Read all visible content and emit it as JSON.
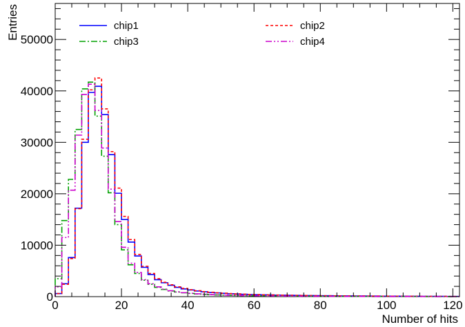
{
  "chart_data": {
    "type": "line",
    "title": "",
    "xlabel": "Number of hits",
    "ylabel": "Entries",
    "xlim": [
      0,
      122
    ],
    "ylim": [
      0,
      57000
    ],
    "x_ticks": [
      0,
      20,
      40,
      60,
      80,
      100,
      120
    ],
    "y_ticks": [
      0,
      10000,
      20000,
      30000,
      40000,
      50000
    ],
    "y_tick_labels": [
      "0",
      "10000",
      "20000",
      "30000",
      "40000",
      "50000"
    ],
    "x_tick_labels": [
      "0",
      "20",
      "40",
      "60",
      "80",
      "100",
      "120"
    ],
    "bin_width": 2,
    "x": [
      0,
      2,
      4,
      6,
      8,
      10,
      12,
      14,
      16,
      18,
      20,
      22,
      24,
      26,
      28,
      30,
      32,
      34,
      36,
      38,
      40,
      42,
      44,
      46,
      48,
      50,
      52,
      54,
      56,
      58,
      60,
      62,
      64,
      66,
      68,
      70,
      72,
      74,
      76,
      78,
      80,
      82,
      84,
      86,
      88,
      90,
      92,
      94,
      96,
      98,
      100,
      102,
      104,
      106,
      108,
      110,
      112,
      114,
      116,
      118,
      120
    ],
    "legend": {
      "placement": "top",
      "columns": 2
    },
    "series": [
      {
        "name": "chip1",
        "color": "#0000ff",
        "dash": "solid",
        "values": [
          600,
          2500,
          7600,
          17200,
          30000,
          39700,
          40900,
          35400,
          27600,
          20100,
          15000,
          10600,
          7900,
          5700,
          4300,
          3300,
          2700,
          2200,
          1800,
          1500,
          1300,
          1100,
          950,
          820,
          720,
          640,
          570,
          510,
          460,
          420,
          380,
          350,
          320,
          300,
          280,
          260,
          240,
          225,
          210,
          195,
          180,
          170,
          160,
          150,
          140,
          130,
          122,
          114,
          106,
          98,
          92,
          86,
          80,
          75,
          70,
          65,
          60,
          56,
          52,
          48,
          45
        ]
      },
      {
        "name": "chip2",
        "color": "#ff0000",
        "dash": "4,3",
        "values": [
          600,
          2400,
          7400,
          17100,
          30600,
          40200,
          42500,
          36500,
          28200,
          21100,
          15600,
          11100,
          8200,
          5900,
          4500,
          3500,
          2800,
          2300,
          1900,
          1600,
          1350,
          1150,
          980,
          850,
          740,
          660,
          590,
          530,
          480,
          430,
          390,
          360,
          330,
          310,
          290,
          270,
          250,
          230,
          215,
          200,
          185,
          175,
          165,
          155,
          145,
          135,
          126,
          118,
          110,
          102,
          95,
          89,
          83,
          77,
          72,
          67,
          62,
          58,
          54,
          50,
          47
        ]
      },
      {
        "name": "chip3",
        "color": "#00a000",
        "dash": "9,3,2,3",
        "values": [
          3500,
          14800,
          22800,
          32500,
          40400,
          41700,
          35100,
          27300,
          20200,
          14000,
          9100,
          6200,
          4500,
          3200,
          2400,
          1800,
          1400,
          1100,
          900,
          750,
          620,
          520,
          440,
          380,
          330,
          290,
          255,
          225,
          200,
          180,
          160,
          145,
          130,
          118,
          107,
          97,
          88,
          80,
          73,
          66,
          60,
          55,
          50,
          46,
          42,
          38,
          35,
          32,
          29,
          27,
          25,
          23,
          21,
          19,
          18,
          16,
          15,
          14,
          13,
          12,
          11
        ]
      },
      {
        "name": "chip4",
        "color": "#cc00cc",
        "dash": "9,3,2,3,2,3",
        "values": [
          1900,
          11500,
          20700,
          31400,
          39300,
          41300,
          36200,
          28900,
          20900,
          14600,
          9600,
          6500,
          4700,
          3300,
          2500,
          1900,
          1450,
          1150,
          930,
          770,
          640,
          540,
          460,
          395,
          345,
          300,
          265,
          235,
          210,
          188,
          168,
          151,
          136,
          123,
          111,
          100,
          91,
          83,
          76,
          69,
          63,
          57,
          52,
          48,
          44,
          40,
          36,
          33,
          30,
          28,
          26,
          24,
          22,
          20,
          19,
          17,
          16,
          15,
          14,
          13,
          12
        ]
      }
    ]
  }
}
